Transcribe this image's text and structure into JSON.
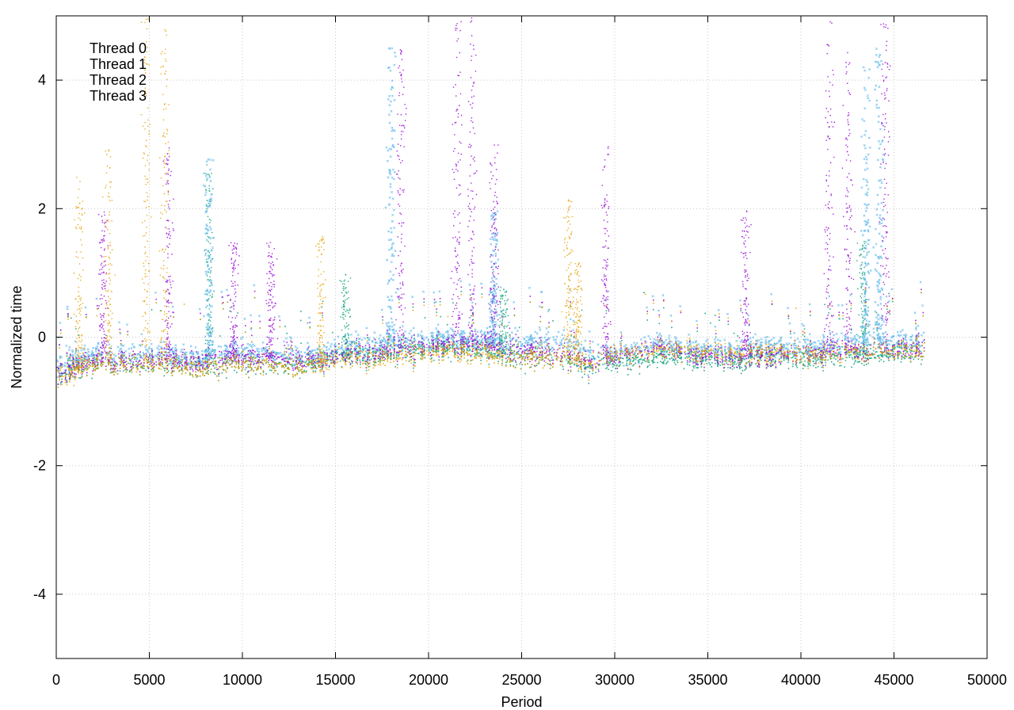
{
  "chart_data": {
    "type": "scatter",
    "title": "",
    "xlabel": "Period",
    "ylabel": "Normalized time",
    "xlim": [
      0,
      50000
    ],
    "ylim": [
      -5,
      5
    ],
    "xticks": [
      0,
      5000,
      10000,
      15000,
      20000,
      25000,
      30000,
      35000,
      40000,
      45000,
      50000
    ],
    "yticks": [
      -4,
      -2,
      0,
      2,
      4
    ],
    "grid": true,
    "legend_position": "top-left",
    "x_data_extent": [
      0,
      46600
    ],
    "series": [
      {
        "name": "Thread 0",
        "color": "#9400d3",
        "marker": "dot",
        "baseline": [
          [
            0,
            -0.55
          ],
          [
            2000,
            -0.35
          ],
          [
            5000,
            -0.35
          ],
          [
            8000,
            -0.35
          ],
          [
            10000,
            -0.3
          ],
          [
            12000,
            -0.3
          ],
          [
            13000,
            -0.35
          ],
          [
            15000,
            -0.3
          ],
          [
            17000,
            -0.2
          ],
          [
            19000,
            -0.15
          ],
          [
            21000,
            -0.1
          ],
          [
            23000,
            -0.1
          ],
          [
            25000,
            -0.2
          ],
          [
            27000,
            -0.25
          ],
          [
            28500,
            -0.35
          ],
          [
            30000,
            -0.3
          ],
          [
            32000,
            -0.15
          ],
          [
            34000,
            -0.25
          ],
          [
            36000,
            -0.3
          ],
          [
            38000,
            -0.3
          ],
          [
            40000,
            -0.25
          ],
          [
            42000,
            -0.2
          ],
          [
            44000,
            -0.2
          ],
          [
            46600,
            -0.15
          ]
        ],
        "outlier_bursts": [
          [
            2500,
            2.0
          ],
          [
            6000,
            3.0
          ],
          [
            9500,
            1.5
          ],
          [
            11500,
            1.5
          ],
          [
            18500,
            4.5
          ],
          [
            21500,
            5.0
          ],
          [
            22300,
            5.0
          ],
          [
            23500,
            3.0
          ],
          [
            29500,
            3.0
          ],
          [
            37000,
            2.0
          ],
          [
            41500,
            5.0
          ],
          [
            42500,
            4.5
          ],
          [
            44500,
            5.0
          ]
        ]
      },
      {
        "name": "Thread 1",
        "color": "#009e73",
        "marker": "dot",
        "baseline": [
          [
            0,
            -0.55
          ],
          [
            2000,
            -0.4
          ],
          [
            5000,
            -0.4
          ],
          [
            8000,
            -0.45
          ],
          [
            10000,
            -0.4
          ],
          [
            12000,
            -0.4
          ],
          [
            13000,
            -0.45
          ],
          [
            15000,
            -0.3
          ],
          [
            17000,
            -0.25
          ],
          [
            19000,
            -0.2
          ],
          [
            21000,
            -0.15
          ],
          [
            23000,
            -0.2
          ],
          [
            25000,
            -0.3
          ],
          [
            27000,
            -0.3
          ],
          [
            28500,
            -0.45
          ],
          [
            30000,
            -0.35
          ],
          [
            32000,
            -0.3
          ],
          [
            34000,
            -0.3
          ],
          [
            36000,
            -0.35
          ],
          [
            38000,
            -0.3
          ],
          [
            40000,
            -0.3
          ],
          [
            42000,
            -0.3
          ],
          [
            44000,
            -0.25
          ],
          [
            46600,
            -0.2
          ]
        ],
        "outlier_bursts": [
          [
            8200,
            2.7
          ],
          [
            15500,
            1.0
          ],
          [
            24000,
            0.8
          ],
          [
            43300,
            1.5
          ]
        ]
      },
      {
        "name": "Thread 2",
        "color": "#56b4e9",
        "marker": "cross",
        "baseline": [
          [
            0,
            -0.45
          ],
          [
            2000,
            -0.25
          ],
          [
            5000,
            -0.25
          ],
          [
            8000,
            -0.3
          ],
          [
            10000,
            -0.2
          ],
          [
            12000,
            -0.25
          ],
          [
            13000,
            -0.3
          ],
          [
            15000,
            -0.2
          ],
          [
            17000,
            -0.1
          ],
          [
            19000,
            -0.05
          ],
          [
            21000,
            0.0
          ],
          [
            23000,
            -0.05
          ],
          [
            25000,
            -0.1
          ],
          [
            27000,
            -0.05
          ],
          [
            28500,
            -0.2
          ],
          [
            30000,
            -0.25
          ],
          [
            32000,
            -0.1
          ],
          [
            34000,
            -0.15
          ],
          [
            36000,
            -0.2
          ],
          [
            38000,
            -0.15
          ],
          [
            40000,
            -0.15
          ],
          [
            42000,
            -0.1
          ],
          [
            44000,
            -0.05
          ],
          [
            46600,
            -0.05
          ]
        ],
        "outlier_bursts": [
          [
            8200,
            2.8
          ],
          [
            18000,
            4.5
          ],
          [
            23500,
            2.0
          ],
          [
            43500,
            4.2
          ],
          [
            44200,
            4.5
          ]
        ]
      },
      {
        "name": "Thread 3",
        "color": "#e69f00",
        "marker": "dot",
        "baseline": [
          [
            0,
            -0.6
          ],
          [
            2000,
            -0.4
          ],
          [
            5000,
            -0.4
          ],
          [
            8000,
            -0.45
          ],
          [
            10000,
            -0.4
          ],
          [
            12000,
            -0.4
          ],
          [
            13000,
            -0.45
          ],
          [
            15000,
            -0.35
          ],
          [
            17000,
            -0.3
          ],
          [
            19000,
            -0.25
          ],
          [
            21000,
            -0.2
          ],
          [
            23000,
            -0.25
          ],
          [
            25000,
            -0.3
          ],
          [
            27000,
            -0.3
          ],
          [
            28500,
            -0.4
          ],
          [
            30000,
            -0.25
          ],
          [
            32000,
            -0.2
          ],
          [
            34000,
            -0.2
          ],
          [
            36000,
            -0.25
          ],
          [
            38000,
            -0.25
          ],
          [
            40000,
            -0.25
          ],
          [
            42000,
            -0.25
          ],
          [
            44000,
            -0.2
          ],
          [
            46600,
            -0.2
          ]
        ],
        "outlier_bursts": [
          [
            1200,
            2.5
          ],
          [
            2800,
            3.0
          ],
          [
            4800,
            5.0
          ],
          [
            5800,
            4.8
          ],
          [
            14200,
            1.6
          ],
          [
            27500,
            2.2
          ],
          [
            28000,
            1.2
          ]
        ]
      }
    ]
  }
}
